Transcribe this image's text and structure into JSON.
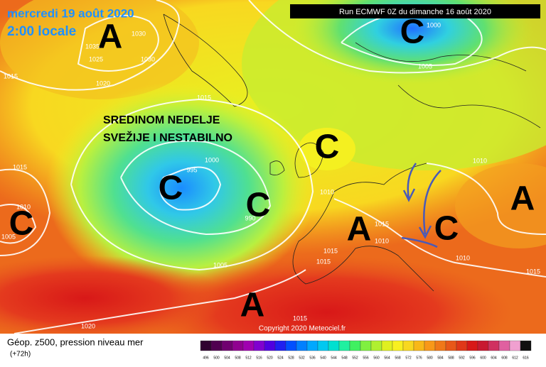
{
  "header": {
    "date": "mercredi 19 août 2020",
    "time": "2:00 locale",
    "run": "Run ECMWF 0Z du dimanche 16 août 2020"
  },
  "annotation": [
    "SREDINOM NEDELJE",
    "SVEŽIJE I NESTABILNO"
  ],
  "centers": [
    "A",
    "C",
    "C",
    "C",
    "C",
    "A",
    "C",
    "A",
    "C",
    "A"
  ],
  "isobar_labels": [
    "1030",
    "1030",
    "1035",
    "1025",
    "1020",
    "1015",
    "1015",
    "1000",
    "995",
    "990",
    "1015",
    "1010",
    "1005",
    "1005",
    "1010",
    "1015",
    "1010",
    "1015",
    "1015",
    "1015",
    "1020",
    "1005",
    "1000",
    "1010",
    "1010",
    "1015"
  ],
  "footer": {
    "title": "Géop. z500, pression niveau mer",
    "lead": "(+72h)",
    "copyright": "Copyright 2020 Meteociel.fr"
  },
  "legend": {
    "labels": [
      496,
      500,
      504,
      508,
      512,
      516,
      520,
      524,
      528,
      532,
      536,
      540,
      544,
      548,
      552,
      556,
      560,
      564,
      568,
      572,
      576,
      580,
      584,
      588,
      592,
      596,
      600,
      604,
      608,
      612,
      616
    ]
  }
}
